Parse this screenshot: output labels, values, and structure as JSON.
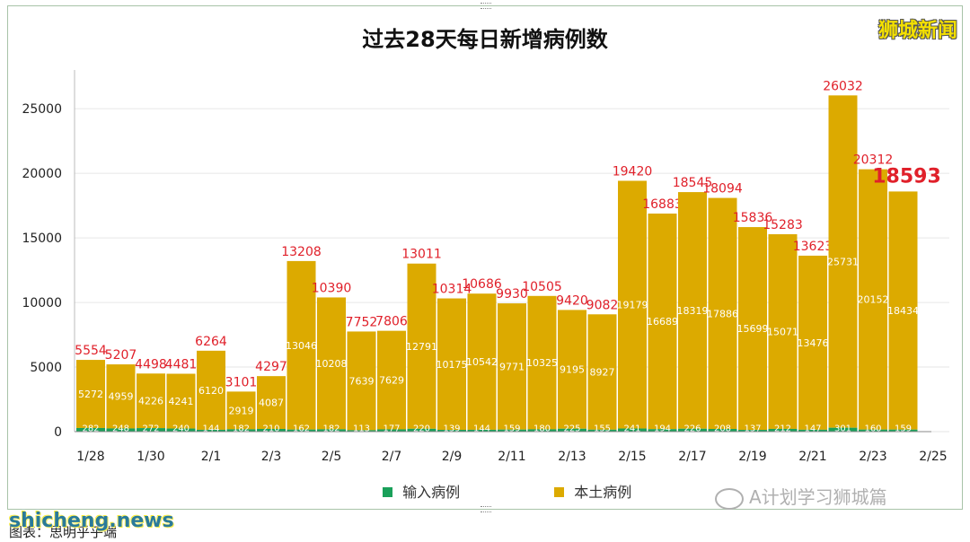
{
  "header": {
    "title": "过去28天每日新增病例数",
    "brand": "狮城新闻"
  },
  "legend": {
    "imported_label": "输入病例",
    "local_label": "本土病例"
  },
  "watermark": "A计划学习狮城篇",
  "site": "shicheng.news",
  "source": "图表：思明乎乎端",
  "colors": {
    "local": "#dcaa00",
    "imported": "#1aa05a",
    "total_label": "#e0202a",
    "inner_label": "#ffffff",
    "grid": "#e6e6e6"
  },
  "chart_data": {
    "type": "bar",
    "stacked": true,
    "title": "过去28天每日新增病例数",
    "xlabel": "",
    "ylabel": "",
    "ylim": [
      0,
      28000
    ],
    "y_ticks": [
      "0",
      "5000",
      "10000",
      "15000",
      "20000",
      "25000"
    ],
    "x_tick_labels": [
      "1/28",
      "1/30",
      "2/1",
      "2/3",
      "2/5",
      "2/7",
      "2/9",
      "2/11",
      "2/13",
      "2/15",
      "2/17",
      "2/19",
      "2/21",
      "2/23",
      "2/25"
    ],
    "categories": [
      "1/28",
      "1/29",
      "1/30",
      "1/31",
      "2/1",
      "2/2",
      "2/3",
      "2/4",
      "2/5",
      "2/6",
      "2/7",
      "2/8",
      "2/9",
      "2/10",
      "2/11",
      "2/12",
      "2/13",
      "2/14",
      "2/15",
      "2/16",
      "2/17",
      "2/18",
      "2/19",
      "2/20",
      "2/21",
      "2/22",
      "2/23",
      "2/24"
    ],
    "series": [
      {
        "name": "输入病例",
        "values": [
          282,
          248,
          272,
          240,
          144,
          182,
          210,
          162,
          182,
          113,
          177,
          220,
          139,
          144,
          159,
          180,
          225,
          155,
          241,
          194,
          226,
          208,
          137,
          212,
          147,
          301,
          160,
          159
        ],
        "value_labels": [
          "282",
          "248",
          "272",
          "240",
          "144",
          "182",
          "210",
          "162",
          "182",
          "113",
          "177",
          "220",
          "139",
          "144",
          "159",
          "180",
          "225",
          "155",
          "241",
          "194",
          "226",
          "208",
          "137",
          "212",
          "147",
          "301",
          "160",
          "159"
        ]
      },
      {
        "name": "本土病例",
        "values": [
          5272,
          4959,
          4226,
          4241,
          6120,
          2919,
          4087,
          13046,
          10208,
          7639,
          7629,
          12791,
          10175,
          10542,
          9771,
          10325,
          9195,
          8927,
          19179,
          16689,
          18319,
          17886,
          15699,
          15071,
          13476,
          25731,
          20152,
          18434
        ],
        "value_labels": [
          "5272",
          "4959",
          "4226",
          "4241",
          "6120",
          "2919",
          "4087",
          "13046",
          "10208",
          "7639",
          "7629",
          "12791",
          "10175",
          "10542",
          "9771",
          "10325",
          "9195",
          "8927",
          "19179",
          "16689",
          "18319",
          "17886",
          "15699",
          "15071",
          "13476",
          "25731",
          "20152",
          "18434"
        ]
      }
    ],
    "totals": [
      5554,
      5207,
      4498,
      4481,
      6264,
      3101,
      4297,
      13208,
      10390,
      7752,
      7806,
      13011,
      10314,
      10686,
      9930,
      10505,
      9420,
      9082,
      19420,
      16883,
      18545,
      18094,
      15836,
      15283,
      13623,
      26032,
      20312,
      18593
    ],
    "total_labels": [
      "5554",
      "5207",
      "4498",
      "4481",
      "6264",
      "3101",
      "4297",
      "13208",
      "10390",
      "7752",
      "7806",
      "13011",
      "10314",
      "10686",
      "9930",
      "10505",
      "9420",
      "9082",
      "19420",
      "16883",
      "18545",
      "18094",
      "15836",
      "15283",
      "13623",
      "26032",
      "20312",
      "18593"
    ]
  }
}
